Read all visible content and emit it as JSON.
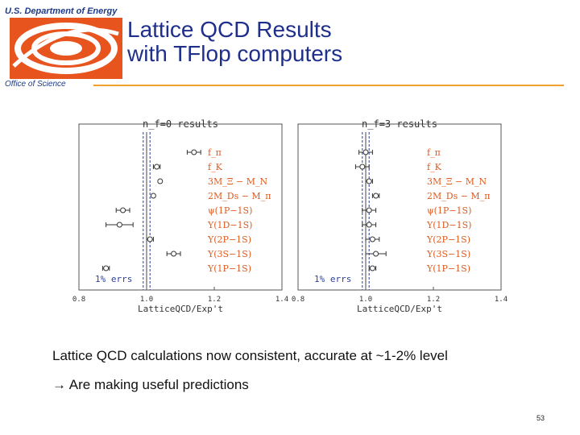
{
  "header": {
    "department": "U.S. Department of Energy",
    "office": "Office of Science",
    "title_line1": "Lattice QCD Results",
    "title_line2": "with TFlop computers",
    "colors": {
      "brand_orange": "#e8541e",
      "rule": "#f0a12a",
      "title_blue": "#1e2f8c"
    }
  },
  "chart_data": [
    {
      "type": "scatter",
      "title": "n_f=0  results",
      "xlabel": "LatticeQCD/Exp't",
      "xlim": [
        0.8,
        1.4
      ],
      "xticks": [
        "0.8",
        "1.0",
        "1.2",
        "1.4"
      ],
      "reference_lines": [
        1.0
      ],
      "error_band_label": "1% errs",
      "points": [
        {
          "label": "f_π",
          "x": 1.14,
          "err": 0.02
        },
        {
          "label": "f_K",
          "x": 1.03,
          "err": 0.01
        },
        {
          "label": "3M_Ξ − M_N",
          "x": 1.04,
          "err": 0.0
        },
        {
          "label": "2M_Ds − M_π",
          "x": 1.02,
          "err": 0.0
        },
        {
          "label": "ψ(1P−1S)",
          "x": 0.93,
          "err": 0.02
        },
        {
          "label": "Υ(1D−1S)",
          "x": 0.92,
          "err": 0.04
        },
        {
          "label": "Υ(2P−1S)",
          "x": 1.01,
          "err": 0.01
        },
        {
          "label": "Υ(3S−1S)",
          "x": 1.08,
          "err": 0.02
        },
        {
          "label": "Υ(1P−1S)",
          "x": 0.88,
          "err": 0.01
        }
      ]
    },
    {
      "type": "scatter",
      "title": "n_f=3  results",
      "xlabel": "LatticeQCD/Exp't",
      "xlim": [
        0.8,
        1.4
      ],
      "xticks": [
        "0.8",
        "1.0",
        "1.2",
        "1.4"
      ],
      "reference_lines": [
        1.0
      ],
      "error_band_label": "1% errs",
      "points": [
        {
          "label": "f_π",
          "x": 1.0,
          "err": 0.02
        },
        {
          "label": "f_K",
          "x": 0.99,
          "err": 0.02
        },
        {
          "label": "3M_Ξ − M_N",
          "x": 1.01,
          "err": 0.01
        },
        {
          "label": "2M_Ds − M_π",
          "x": 1.03,
          "err": 0.01
        },
        {
          "label": "ψ(1P−1S)",
          "x": 1.01,
          "err": 0.02
        },
        {
          "label": "Υ(1D−1S)",
          "x": 1.01,
          "err": 0.02
        },
        {
          "label": "Υ(2P−1S)",
          "x": 1.02,
          "err": 0.02
        },
        {
          "label": "Υ(3S−1S)",
          "x": 1.03,
          "err": 0.03
        },
        {
          "label": "Υ(1P−1S)",
          "x": 1.02,
          "err": 0.01
        }
      ]
    }
  ],
  "body": {
    "line1": "Lattice QCD calculations now consistent, accurate at ~1-2% level",
    "line2_arrow": "→",
    "line2": "Are making useful predictions"
  },
  "footer": {
    "page_number": "53"
  }
}
